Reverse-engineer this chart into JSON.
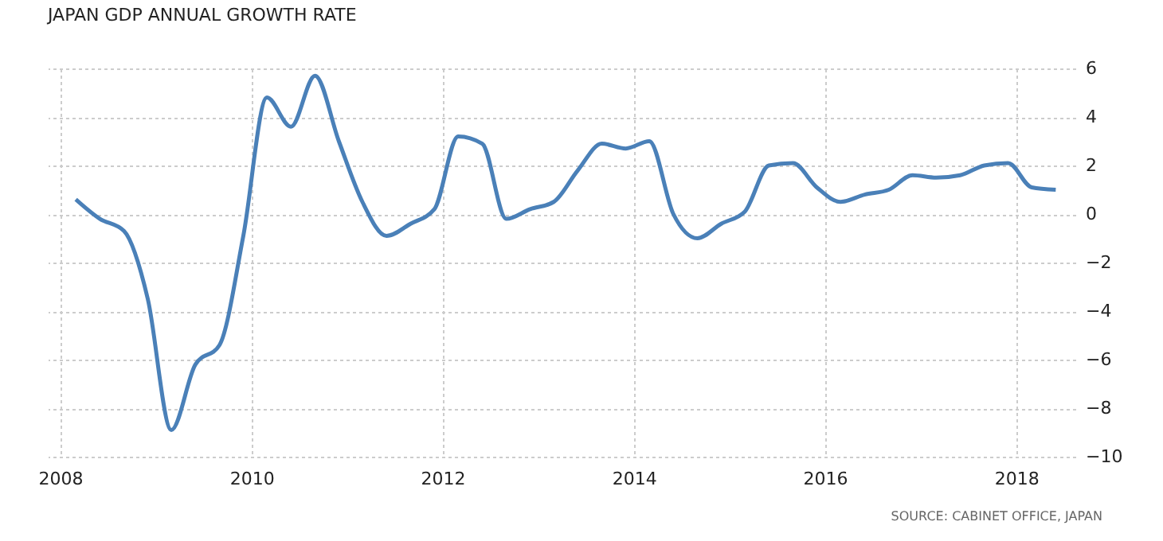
{
  "chart_data": {
    "type": "line",
    "title": "JAPAN GDP ANNUAL GROWTH RATE",
    "annotations": [
      "SOURCE: CABINET OFFICE, JAPAN"
    ],
    "x": [
      "2008-03",
      "2008-06",
      "2008-09",
      "2008-12",
      "2009-03",
      "2009-06",
      "2009-09",
      "2009-12",
      "2010-03",
      "2010-06",
      "2010-09",
      "2010-12",
      "2011-03",
      "2011-06",
      "2011-09",
      "2011-12",
      "2012-03",
      "2012-06",
      "2012-09",
      "2012-12",
      "2013-03",
      "2013-06",
      "2013-09",
      "2013-12",
      "2014-03",
      "2014-06",
      "2014-09",
      "2014-12",
      "2015-03",
      "2015-06",
      "2015-09",
      "2015-12",
      "2016-03",
      "2016-06",
      "2016-09",
      "2016-12",
      "2017-03",
      "2017-06",
      "2017-09",
      "2017-12",
      "2018-03",
      "2018-06"
    ],
    "series": [
      {
        "color": "#4a80b8",
        "values": [
          0.6,
          -0.2,
          -0.7,
          -3.5,
          -8.9,
          -6.2,
          -5.4,
          -0.9,
          4.8,
          3.6,
          5.7,
          3.0,
          0.5,
          -0.9,
          -0.4,
          0.2,
          3.2,
          2.9,
          -0.2,
          0.2,
          0.5,
          1.8,
          2.9,
          2.7,
          3.0,
          0.0,
          -1.0,
          -0.4,
          0.1,
          2.0,
          2.1,
          1.1,
          0.5,
          0.8,
          1.0,
          1.6,
          1.5,
          1.6,
          2.0,
          2.1,
          1.1,
          1.0
        ]
      }
    ],
    "xlim": [
      "2007-11-15",
      "2018-08-15"
    ],
    "xticks": [
      "2008",
      "2010",
      "2012",
      "2014",
      "2016",
      "2018"
    ],
    "ylim": [
      -10,
      6
    ],
    "yticks": [
      -10,
      -8,
      -6,
      -4,
      -2,
      0,
      2,
      4,
      6
    ],
    "grid": true,
    "legend": false,
    "marker": "none",
    "line_style": "solid"
  }
}
